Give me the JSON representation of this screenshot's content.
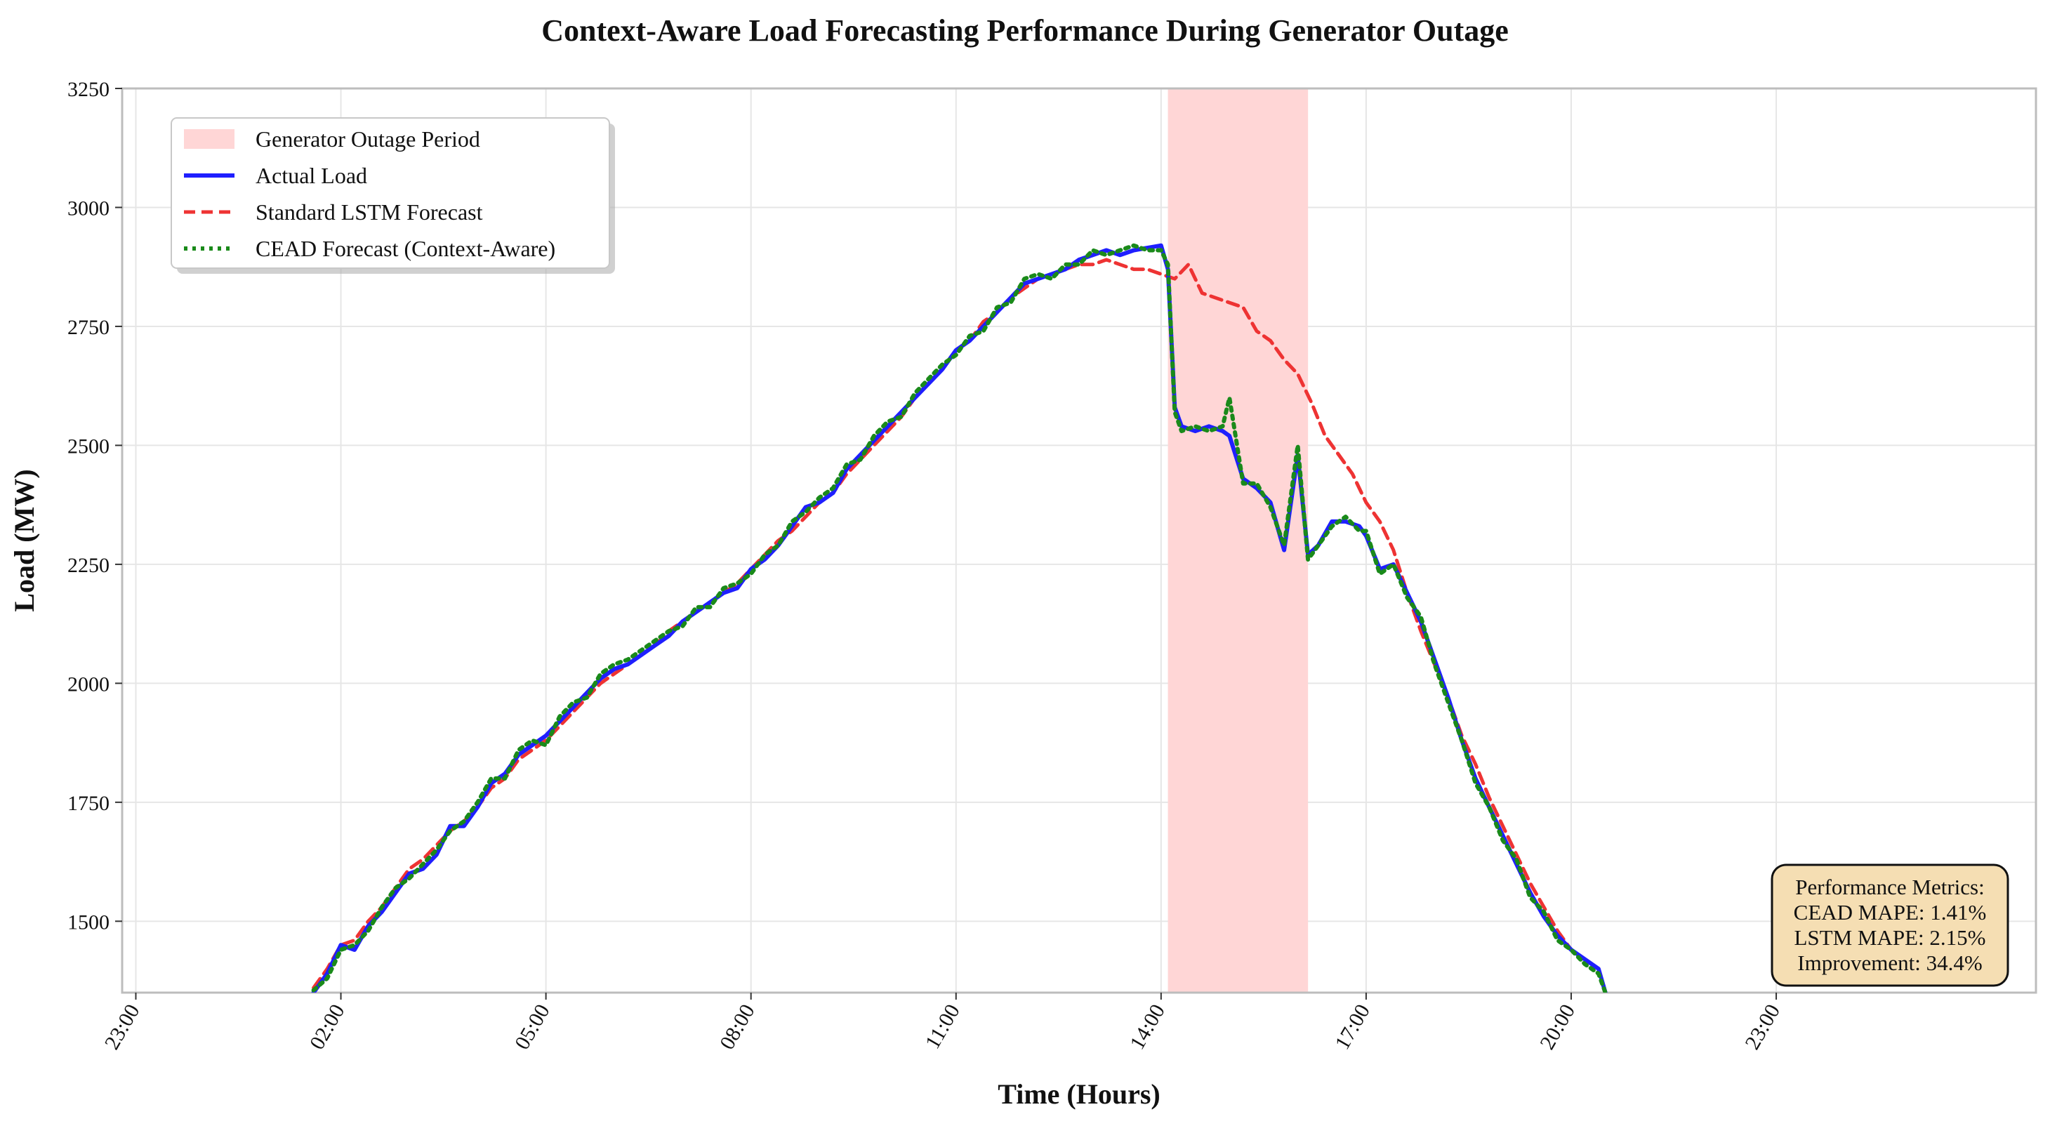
{
  "chart_data": {
    "type": "line",
    "title": "Context-Aware Load Forecasting Performance During Generator Outage",
    "xlabel": "Time (Hours)",
    "ylabel": "Load (MW)",
    "xlim_hours": [
      -1.2,
      26.8
    ],
    "ylim": [
      1350,
      3250
    ],
    "x_ticks": [
      {
        "hour": -1,
        "label": "23:00"
      },
      {
        "hour": 2,
        "label": "02:00"
      },
      {
        "hour": 5,
        "label": "05:00"
      },
      {
        "hour": 8,
        "label": "08:00"
      },
      {
        "hour": 11,
        "label": "11:00"
      },
      {
        "hour": 14,
        "label": "14:00"
      },
      {
        "hour": 17,
        "label": "17:00"
      },
      {
        "hour": 20,
        "label": "20:00"
      },
      {
        "hour": 23,
        "label": "23:00"
      }
    ],
    "y_ticks": [
      1500,
      1750,
      2000,
      2250,
      2500,
      2750,
      3000,
      3250
    ],
    "grid": true,
    "outage": {
      "start_hour": 14.1,
      "end_hour": 16.15,
      "label": "Generator Outage Period",
      "color": "#ffd6d6"
    },
    "legend": {
      "position": "top-left",
      "entries": [
        {
          "label": "Generator Outage Period",
          "style": "patch",
          "color": "#ffd6d6"
        },
        {
          "label": "Actual Load",
          "style": "solid",
          "color": "#1f1fff"
        },
        {
          "label": "Standard LSTM Forecast",
          "style": "dashed",
          "color": "#ee3333"
        },
        {
          "label": "CEAD Forecast (Context-Aware)",
          "style": "dotted",
          "color": "#1a8a1a"
        }
      ]
    },
    "series": [
      {
        "name": "Actual Load",
        "color": "#1f1fff",
        "x": [
          1.6,
          1.8,
          2.0,
          2.2,
          2.4,
          2.6,
          2.8,
          3.0,
          3.2,
          3.4,
          3.6,
          3.8,
          4.0,
          4.2,
          4.4,
          4.6,
          4.8,
          5.0,
          5.2,
          5.4,
          5.6,
          5.8,
          6.0,
          6.2,
          6.4,
          6.6,
          6.8,
          7.0,
          7.2,
          7.4,
          7.6,
          7.8,
          8.0,
          8.2,
          8.4,
          8.6,
          8.8,
          9.0,
          9.2,
          9.4,
          9.6,
          9.8,
          10.0,
          10.2,
          10.4,
          10.6,
          10.8,
          11.0,
          11.2,
          11.4,
          11.6,
          11.8,
          12.0,
          12.2,
          12.4,
          12.6,
          12.8,
          13.0,
          13.2,
          13.4,
          13.6,
          13.8,
          14.0,
          14.1,
          14.2,
          14.3,
          14.5,
          14.7,
          14.9,
          15.0,
          15.2,
          15.4,
          15.6,
          15.8,
          16.0,
          16.15,
          16.3,
          16.5,
          16.7,
          16.9,
          17.0,
          17.2,
          17.4,
          17.6,
          17.8,
          18.0,
          18.2,
          18.4,
          18.6,
          18.8,
          19.0,
          19.2,
          19.4,
          19.6,
          19.8,
          20.0,
          20.2,
          20.4,
          20.5
        ],
        "values": [
          1350,
          1390,
          1450,
          1440,
          1490,
          1520,
          1560,
          1600,
          1610,
          1640,
          1700,
          1700,
          1740,
          1790,
          1810,
          1850,
          1870,
          1890,
          1920,
          1950,
          1980,
          2010,
          2030,
          2040,
          2060,
          2080,
          2100,
          2130,
          2150,
          2170,
          2190,
          2200,
          2240,
          2260,
          2290,
          2330,
          2370,
          2380,
          2400,
          2450,
          2480,
          2510,
          2540,
          2570,
          2600,
          2630,
          2660,
          2700,
          2720,
          2750,
          2780,
          2810,
          2840,
          2850,
          2860,
          2870,
          2890,
          2900,
          2910,
          2900,
          2910,
          2915,
          2920,
          2870,
          2580,
          2540,
          2530,
          2540,
          2530,
          2520,
          2430,
          2410,
          2380,
          2280,
          2480,
          2270,
          2290,
          2340,
          2340,
          2330,
          2310,
          2240,
          2250,
          2190,
          2130,
          2050,
          1970,
          1880,
          1800,
          1740,
          1680,
          1620,
          1560,
          1510,
          1470,
          1440,
          1420,
          1400,
          1350
        ]
      },
      {
        "name": "Standard LSTM Forecast",
        "color": "#ee3333",
        "x": [
          1.6,
          1.8,
          2.0,
          2.2,
          2.4,
          2.6,
          2.8,
          3.0,
          3.2,
          3.4,
          3.6,
          3.8,
          4.0,
          4.2,
          4.4,
          4.6,
          4.8,
          5.0,
          5.2,
          5.4,
          5.6,
          5.8,
          6.0,
          6.2,
          6.4,
          6.6,
          6.8,
          7.0,
          7.2,
          7.4,
          7.6,
          7.8,
          8.0,
          8.2,
          8.4,
          8.6,
          8.8,
          9.0,
          9.2,
          9.4,
          9.6,
          9.8,
          10.0,
          10.2,
          10.4,
          10.6,
          10.8,
          11.0,
          11.2,
          11.4,
          11.6,
          11.8,
          12.0,
          12.2,
          12.4,
          12.6,
          12.8,
          13.0,
          13.2,
          13.4,
          13.6,
          13.8,
          14.0,
          14.2,
          14.4,
          14.6,
          14.8,
          15.0,
          15.2,
          15.4,
          15.6,
          15.8,
          16.0,
          16.2,
          16.4,
          16.6,
          16.8,
          17.0,
          17.2,
          17.4,
          17.6,
          17.8,
          18.0,
          18.2,
          18.4,
          18.6,
          18.8,
          19.0,
          19.2,
          19.4,
          19.6,
          19.8,
          20.0,
          20.2,
          20.4,
          20.5
        ],
        "values": [
          1360,
          1400,
          1450,
          1460,
          1500,
          1530,
          1570,
          1610,
          1630,
          1660,
          1690,
          1710,
          1740,
          1780,
          1800,
          1840,
          1860,
          1880,
          1910,
          1940,
          1970,
          2000,
          2020,
          2040,
          2060,
          2080,
          2110,
          2130,
          2150,
          2170,
          2190,
          2210,
          2240,
          2270,
          2300,
          2320,
          2350,
          2380,
          2400,
          2440,
          2470,
          2500,
          2530,
          2560,
          2600,
          2630,
          2660,
          2700,
          2720,
          2760,
          2780,
          2810,
          2830,
          2850,
          2860,
          2870,
          2880,
          2880,
          2890,
          2880,
          2870,
          2870,
          2860,
          2850,
          2880,
          2820,
          2810,
          2800,
          2790,
          2740,
          2720,
          2680,
          2650,
          2590,
          2520,
          2480,
          2440,
          2380,
          2340,
          2280,
          2190,
          2110,
          2040,
          1970,
          1890,
          1830,
          1760,
          1700,
          1640,
          1580,
          1530,
          1480,
          1440,
          1420,
          1400,
          1350
        ]
      },
      {
        "name": "CEAD Forecast (Context-Aware)",
        "color": "#1a8a1a",
        "x": [
          1.6,
          1.8,
          2.0,
          2.2,
          2.4,
          2.6,
          2.8,
          3.0,
          3.2,
          3.4,
          3.6,
          3.8,
          4.0,
          4.2,
          4.4,
          4.6,
          4.8,
          5.0,
          5.2,
          5.4,
          5.6,
          5.8,
          6.0,
          6.2,
          6.4,
          6.6,
          6.8,
          7.0,
          7.2,
          7.4,
          7.6,
          7.8,
          8.0,
          8.2,
          8.4,
          8.6,
          8.8,
          9.0,
          9.2,
          9.4,
          9.6,
          9.8,
          10.0,
          10.2,
          10.4,
          10.6,
          10.8,
          11.0,
          11.2,
          11.4,
          11.6,
          11.8,
          12.0,
          12.2,
          12.4,
          12.6,
          12.8,
          13.0,
          13.2,
          13.4,
          13.6,
          13.8,
          14.0,
          14.1,
          14.2,
          14.3,
          14.5,
          14.7,
          14.9,
          15.0,
          15.2,
          15.4,
          15.6,
          15.8,
          16.0,
          16.15,
          16.3,
          16.5,
          16.7,
          16.9,
          17.0,
          17.2,
          17.4,
          17.6,
          17.8,
          18.0,
          18.2,
          18.4,
          18.6,
          18.8,
          19.0,
          19.2,
          19.4,
          19.6,
          19.8,
          20.0,
          20.2,
          20.4,
          20.5
        ],
        "values": [
          1355,
          1380,
          1440,
          1450,
          1480,
          1530,
          1570,
          1590,
          1620,
          1650,
          1690,
          1710,
          1750,
          1800,
          1800,
          1860,
          1880,
          1870,
          1930,
          1960,
          1970,
          2020,
          2040,
          2050,
          2070,
          2090,
          2110,
          2120,
          2160,
          2160,
          2200,
          2210,
          2230,
          2270,
          2290,
          2340,
          2360,
          2390,
          2410,
          2460,
          2470,
          2520,
          2550,
          2560,
          2610,
          2640,
          2670,
          2690,
          2730,
          2740,
          2790,
          2800,
          2850,
          2860,
          2850,
          2880,
          2880,
          2910,
          2900,
          2910,
          2920,
          2910,
          2910,
          2880,
          2570,
          2530,
          2540,
          2530,
          2540,
          2600,
          2420,
          2420,
          2370,
          2290,
          2500,
          2260,
          2290,
          2330,
          2350,
          2320,
          2320,
          2230,
          2250,
          2180,
          2140,
          2040,
          1960,
          1880,
          1790,
          1740,
          1670,
          1630,
          1550,
          1520,
          1460,
          1440,
          1410,
          1390,
          1350
        ]
      }
    ],
    "metrics_box": {
      "title": "Performance Metrics:",
      "lines": [
        "CEAD MAPE: 1.41%",
        "LSTM MAPE: 2.15%",
        "Improvement: 34.4%"
      ],
      "position": "bottom-right"
    }
  }
}
